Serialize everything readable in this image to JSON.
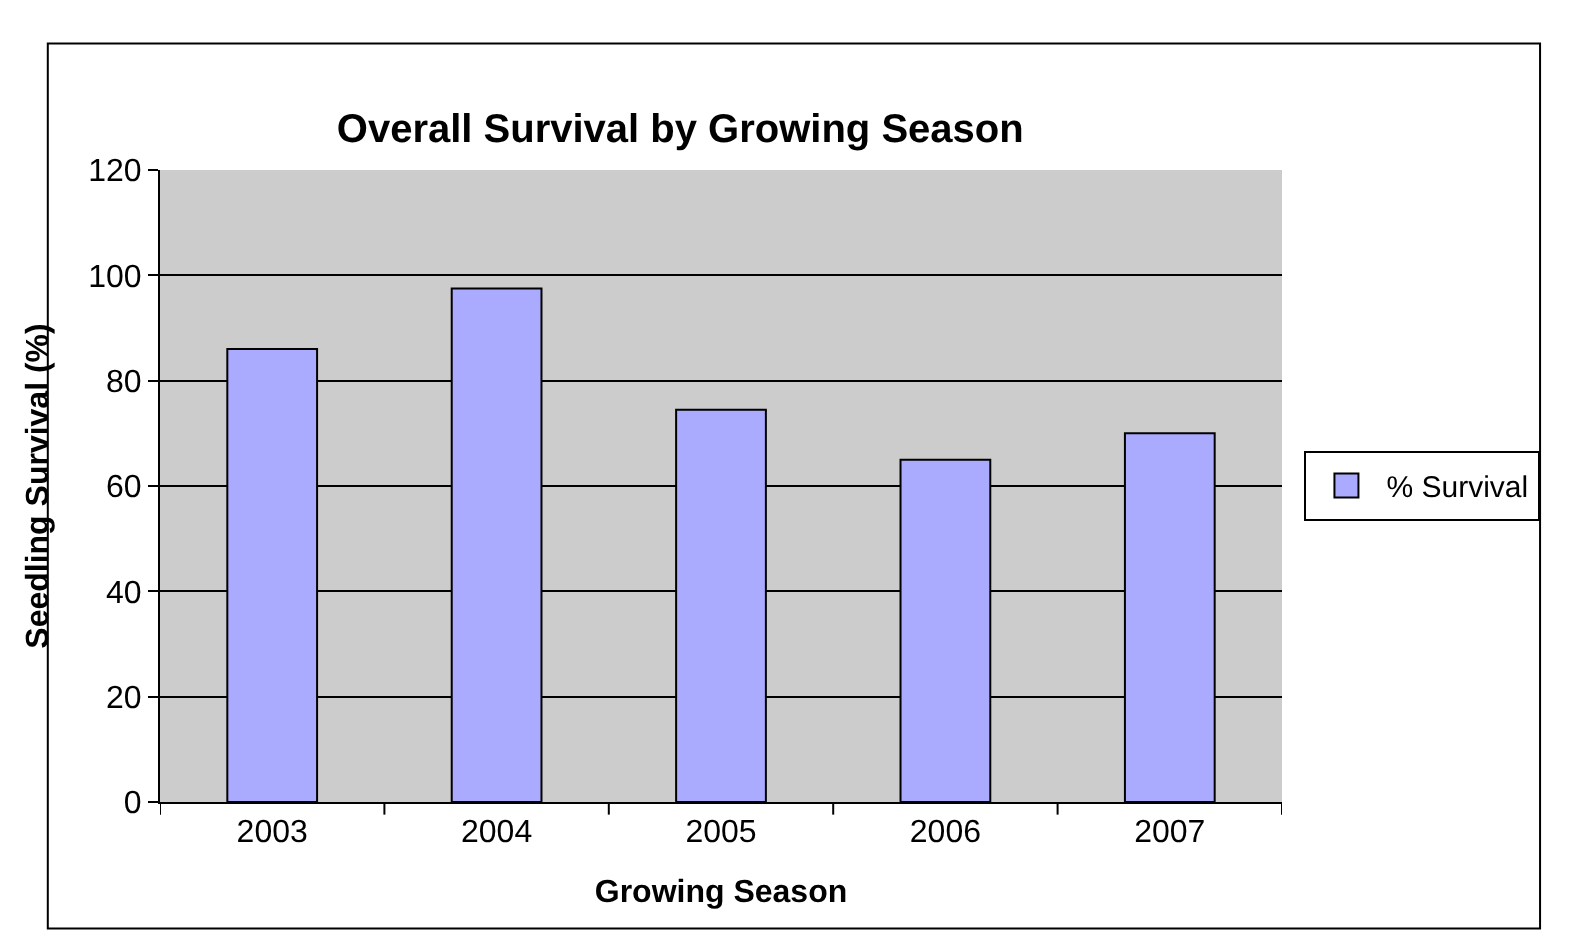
{
  "chart_data": {
    "type": "bar",
    "title": "Overall Survival by Growing Season",
    "xlabel": "Growing Season",
    "ylabel": "Seedling Survival (%)",
    "categories": [
      "2003",
      "2004",
      "2005",
      "2006",
      "2007"
    ],
    "series": [
      {
        "name": "% Survival",
        "color": "#aaaaff",
        "values": [
          86,
          97.5,
          74.5,
          65,
          70
        ]
      }
    ],
    "ylim": [
      0,
      120
    ],
    "yticks": [
      0,
      20,
      40,
      60,
      80,
      100,
      120
    ],
    "grid": "y",
    "legend": "right"
  }
}
